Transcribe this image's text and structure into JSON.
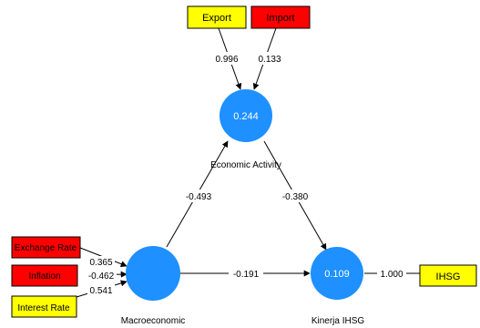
{
  "indicators": {
    "export": {
      "label": "Export",
      "fill": "#ffff00"
    },
    "import": {
      "label": "Import",
      "fill": "#ff0000"
    },
    "exchange": {
      "label": "Exchange Rate",
      "fill": "#ff0000"
    },
    "inflation": {
      "label": "Inflation",
      "fill": "#ff0000"
    },
    "interest": {
      "label": "Interest Rate",
      "fill": "#ffff00"
    },
    "ihsg": {
      "label": "IHSG",
      "fill": "#ffff00"
    }
  },
  "constructs": {
    "economic": {
      "label": "Economic Activity",
      "r2": "0.244",
      "fill": "#1e90ff"
    },
    "macro": {
      "label": "Macroeconomic",
      "r2": "",
      "fill": "#1e90ff"
    },
    "kinerja": {
      "label": "Kinerja IHSG",
      "r2": "0.109",
      "fill": "#1e90ff"
    }
  },
  "paths": {
    "export_econ": "0.996",
    "import_econ": "0.133",
    "exchange_macro": "0.365",
    "inflation_macro": "-0.462",
    "interest_macro": "0.541",
    "macro_econ": "-0.493",
    "econ_kinerja": "-0.380",
    "macro_kinerja": "-0.191",
    "kinerja_ihsg": "1.000"
  }
}
